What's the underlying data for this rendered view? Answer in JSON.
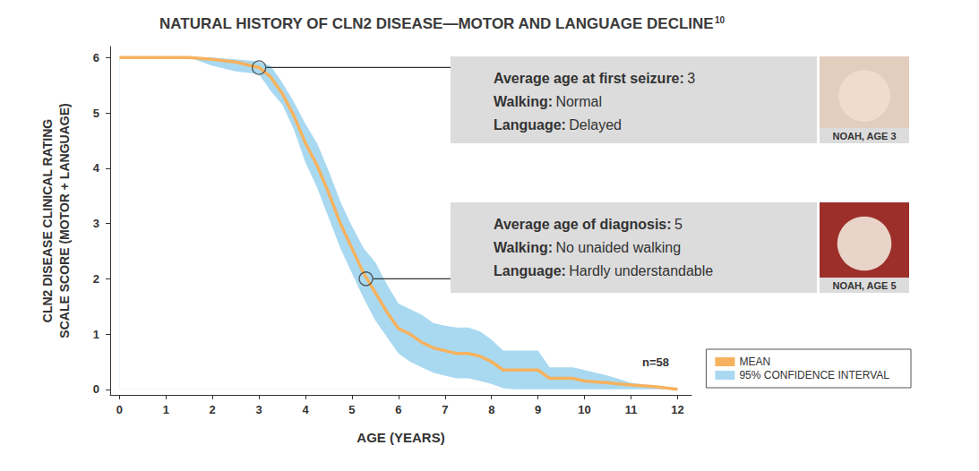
{
  "chart_data": {
    "type": "line",
    "title": "NATURAL HISTORY OF CLN2 DISEASE—MOTOR AND LANGUAGE DECLINE",
    "title_superscript": "10",
    "x_label": "AGE (YEARS)",
    "y_label": "CLN2 DISEASE CLINICAL RATING\nSCALE SCORE (MOTOR + LANGUAGE)",
    "x": [
      0,
      0.5,
      1,
      1.5,
      2,
      2.5,
      3,
      3.25,
      3.5,
      3.75,
      4,
      4.25,
      4.5,
      4.75,
      5,
      5.25,
      5.5,
      5.75,
      6,
      6.25,
      6.5,
      6.75,
      7,
      7.25,
      7.5,
      7.75,
      8,
      8.25,
      8.5,
      8.75,
      9,
      9.25,
      9.5,
      9.75,
      10,
      10.5,
      11,
      11.5,
      12
    ],
    "series": [
      {
        "name": "MEAN",
        "color": "#f6b25e",
        "values": [
          6,
          6,
          6,
          6,
          5.97,
          5.92,
          5.82,
          5.65,
          5.35,
          4.95,
          4.45,
          4.05,
          3.55,
          3.0,
          2.55,
          2.1,
          1.75,
          1.4,
          1.1,
          1.0,
          0.85,
          0.75,
          0.7,
          0.65,
          0.65,
          0.6,
          0.5,
          0.35,
          0.35,
          0.35,
          0.35,
          0.2,
          0.2,
          0.2,
          0.15,
          0.12,
          0.08,
          0.05,
          0
        ]
      }
    ],
    "confidence_interval": {
      "name": "95% CONFIDENCE INTERVAL",
      "color": "#a9d9f1",
      "upper": [
        6,
        6,
        6,
        6,
        6,
        5.97,
        5.93,
        5.85,
        5.55,
        5.2,
        4.8,
        4.45,
        3.95,
        3.4,
        2.95,
        2.55,
        2.3,
        1.9,
        1.55,
        1.45,
        1.35,
        1.2,
        1.15,
        1.12,
        1.12,
        1.05,
        0.9,
        0.7,
        0.7,
        0.7,
        0.7,
        0.4,
        0.4,
        0.4,
        0.35,
        0.25,
        0.12,
        0.06,
        0.02
      ],
      "lower": [
        6,
        6,
        6,
        6,
        5.85,
        5.75,
        5.7,
        5.4,
        5.15,
        4.7,
        4.1,
        3.65,
        3.1,
        2.55,
        2.1,
        1.65,
        1.25,
        0.95,
        0.65,
        0.5,
        0.4,
        0.3,
        0.25,
        0.2,
        0.2,
        0.15,
        0.1,
        0.02,
        0,
        0,
        0,
        0,
        0,
        0,
        0,
        0,
        0,
        0,
        0
      ]
    },
    "xlim": [
      -0.2,
      12.3
    ],
    "xticks": [
      0,
      1,
      2,
      3,
      4,
      5,
      6,
      7,
      8,
      9,
      10,
      11,
      12
    ],
    "ylim": [
      -0.1,
      6.2
    ],
    "yticks": [
      0,
      1,
      2,
      3,
      4,
      5,
      6
    ],
    "grid": false,
    "legend": "bottom-right",
    "sample_size_label": "n=58",
    "annotations": [
      {
        "point": [
          3,
          5.82
        ],
        "lines": [
          {
            "label": "Average age at first seizure:",
            "value": 3
          },
          {
            "label": "Walking:",
            "value": "Normal"
          },
          {
            "label": "Language:",
            "value": "Delayed"
          }
        ],
        "caption": "NOAH, AGE 3"
      },
      {
        "point": [
          5.3,
          2.0
        ],
        "lines": [
          {
            "label": "Average age of diagnosis:",
            "value": 5
          },
          {
            "label": "Walking:",
            "value": "No unaided walking"
          },
          {
            "label": "Language:",
            "value": "Hardly understandable"
          }
        ],
        "caption": "NOAH, AGE 5"
      }
    ]
  }
}
